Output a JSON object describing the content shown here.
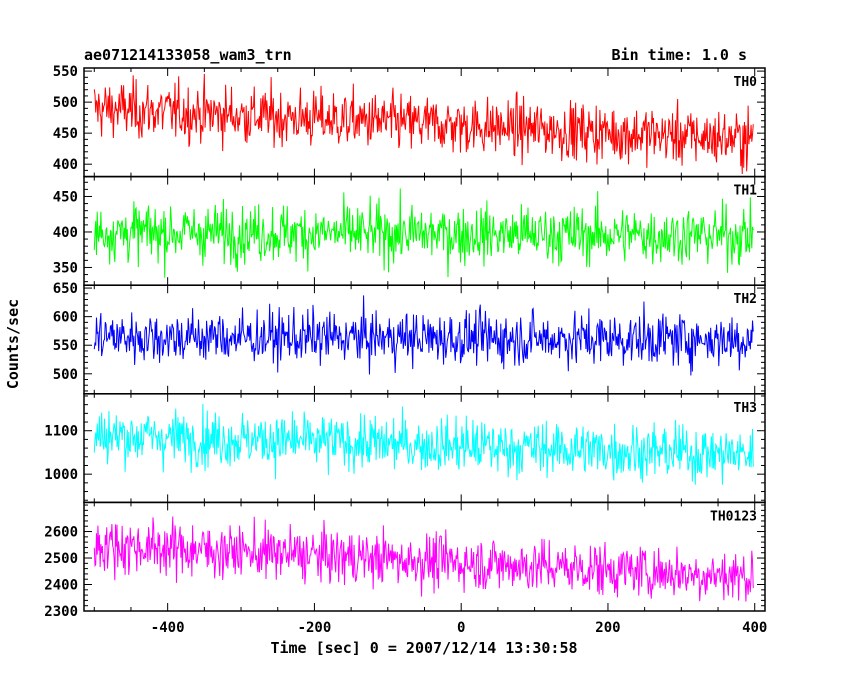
{
  "title_left": "ae071214133058_wam3_trn",
  "title_right": "Bin time: 1.0 s",
  "xlabel": "Time [sec] 0 = 2007/12/14 13:30:58",
  "ylabel": "Counts/sec",
  "chart_data": {
    "type": "line",
    "xlim": [
      -514,
      414
    ],
    "x_ticks": [
      -400,
      -200,
      0,
      200,
      400
    ],
    "x_data_range": [
      -500,
      398
    ],
    "bin_time_s": 1.0,
    "series": [
      {
        "name": "TH0",
        "color": "#ff0000",
        "ylim": [
          380,
          555
        ],
        "y_ticks": [
          400,
          450,
          500,
          550
        ],
        "start_level": 490,
        "end_level": 440,
        "noise_amplitude": 55
      },
      {
        "name": "TH1",
        "color": "#00ff00",
        "ylim": [
          325,
          478
        ],
        "y_ticks": [
          350,
          400,
          450
        ],
        "start_level": 400,
        "end_level": 395,
        "noise_amplitude": 48
      },
      {
        "name": "TH2",
        "color": "#0000ff",
        "ylim": [
          465,
          655
        ],
        "y_ticks": [
          500,
          550,
          600,
          650
        ],
        "start_level": 565,
        "end_level": 560,
        "noise_amplitude": 55
      },
      {
        "name": "TH3",
        "color": "#00ffff",
        "ylim": [
          935,
          1185
        ],
        "y_ticks": [
          1000,
          1100
        ],
        "start_level": 1090,
        "end_level": 1045,
        "noise_amplitude": 75
      },
      {
        "name": "TH0123",
        "color": "#ff00ff",
        "ylim": [
          2300,
          2710
        ],
        "y_ticks": [
          2300,
          2400,
          2500,
          2600
        ],
        "start_level": 2550,
        "end_level": 2430,
        "noise_amplitude": 120
      }
    ]
  }
}
